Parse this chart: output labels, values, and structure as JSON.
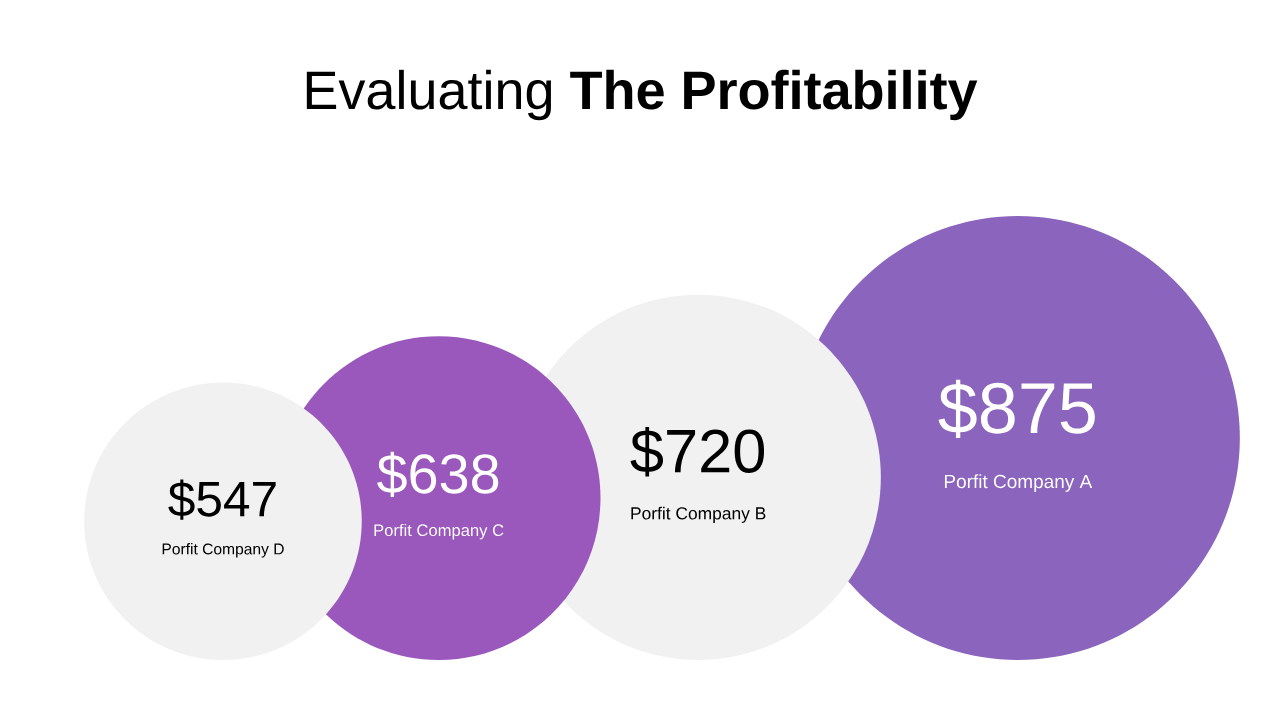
{
  "chart_data": {
    "type": "other",
    "title": "Evaluating **The Profitability**",
    "categories": [
      "Porfit Company D",
      "Porfit Company C",
      "Porfit Company B",
      "Porfit Company A"
    ],
    "values": [
      547,
      638,
      720,
      875
    ],
    "value_labels": [
      "$547",
      "$638",
      "$720",
      "$875"
    ],
    "colors": [
      "#f1f1f1",
      "#9a58bd",
      "#f1f1f1",
      "#8a64bd"
    ]
  }
}
